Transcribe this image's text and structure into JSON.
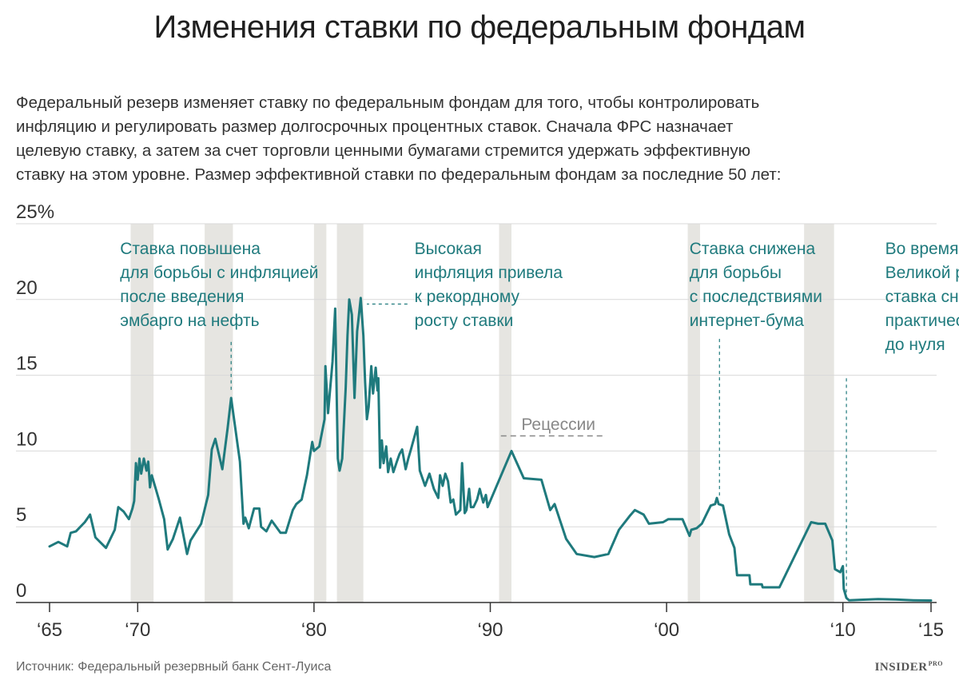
{
  "title": "Изменения ставки по федеральным фондам",
  "subtitle_lines": [
    "Федеральный резерв изменяет ставку по федеральным фондам для того, чтобы контролировать",
    "инфляцию и регулировать размер долгосрочных процентных ставок. Сначала ФРС назначает",
    "целевую ставку, а затем за счет торговли ценными бумагами стремится удержать эффективную",
    "ставку на этом уровне. Размер эффективной ставки по федеральным фондам за последние 50 лет:"
  ],
  "footer": {
    "source": "Источник: Федеральный резервный банк Сент-Луиса",
    "brand": "INSIDER",
    "brand_suffix": "PRO"
  },
  "colors": {
    "line": "#1f7a7d",
    "annotation": "#1f7a7d",
    "recession": "#e6e5e1",
    "grid": "#d9d9d9",
    "axis": "#333333",
    "legend_text": "#888888"
  },
  "chart_data": {
    "type": "line",
    "title": "",
    "xlabel": "",
    "ylabel": "",
    "xlim": [
      1965,
      2015
    ],
    "ylim": [
      0,
      25
    ],
    "grid": true,
    "yticks": [
      {
        "value": 0,
        "label": "0"
      },
      {
        "value": 5,
        "label": "5"
      },
      {
        "value": 10,
        "label": "10"
      },
      {
        "value": 15,
        "label": "15"
      },
      {
        "value": 20,
        "label": "20"
      },
      {
        "value": 25,
        "label": "25%"
      }
    ],
    "xticks": [
      {
        "value": 1965,
        "label": "‘65"
      },
      {
        "value": 1970,
        "label": "‘70"
      },
      {
        "value": 1980,
        "label": "‘80"
      },
      {
        "value": 1990,
        "label": "‘90"
      },
      {
        "value": 2000,
        "label": "‘00"
      },
      {
        "value": 2010,
        "label": "‘10"
      },
      {
        "value": 2015,
        "label": "‘15"
      }
    ],
    "recessions": [
      [
        1969.6,
        1970.9
      ],
      [
        1973.8,
        1975.4
      ],
      [
        1980.0,
        1980.7
      ],
      [
        1981.3,
        1982.8
      ],
      [
        1990.5,
        1991.2
      ],
      [
        2001.2,
        2001.9
      ],
      [
        2007.8,
        2009.5
      ]
    ],
    "series": [
      {
        "name": "",
        "points": [
          [
            1965.0,
            3.7
          ],
          [
            1965.5,
            4.0
          ],
          [
            1966.0,
            3.7
          ],
          [
            1966.2,
            4.6
          ],
          [
            1966.5,
            4.7
          ],
          [
            1967.0,
            5.3
          ],
          [
            1967.3,
            5.8
          ],
          [
            1967.6,
            4.3
          ],
          [
            1968.2,
            3.6
          ],
          [
            1968.7,
            4.8
          ],
          [
            1968.9,
            6.3
          ],
          [
            1969.2,
            6.0
          ],
          [
            1969.5,
            5.5
          ],
          [
            1969.7,
            6.2
          ],
          [
            1969.8,
            6.7
          ],
          [
            1969.9,
            9.2
          ],
          [
            1970.0,
            8.1
          ],
          [
            1970.1,
            9.5
          ],
          [
            1970.2,
            8.5
          ],
          [
            1970.35,
            9.5
          ],
          [
            1970.5,
            8.7
          ],
          [
            1970.6,
            9.3
          ],
          [
            1970.7,
            7.6
          ],
          [
            1970.8,
            8.4
          ],
          [
            1971.2,
            6.8
          ],
          [
            1971.5,
            5.5
          ],
          [
            1971.7,
            3.5
          ],
          [
            1972.0,
            4.2
          ],
          [
            1972.4,
            5.6
          ],
          [
            1972.8,
            3.2
          ],
          [
            1973.0,
            4.1
          ],
          [
            1973.6,
            5.2
          ],
          [
            1974.0,
            7.1
          ],
          [
            1974.2,
            10.1
          ],
          [
            1974.4,
            10.8
          ],
          [
            1974.8,
            8.8
          ],
          [
            1975.1,
            11.5
          ],
          [
            1975.3,
            13.5
          ],
          [
            1975.8,
            9.3
          ],
          [
            1976.0,
            5.2
          ],
          [
            1976.1,
            5.6
          ],
          [
            1976.3,
            4.9
          ],
          [
            1976.6,
            6.2
          ],
          [
            1976.9,
            6.2
          ],
          [
            1977.0,
            5.0
          ],
          [
            1977.3,
            4.7
          ],
          [
            1977.6,
            5.4
          ],
          [
            1978.1,
            4.6
          ],
          [
            1978.4,
            4.6
          ],
          [
            1978.8,
            6.1
          ],
          [
            1979.0,
            6.5
          ],
          [
            1979.3,
            6.8
          ],
          [
            1979.6,
            8.4
          ],
          [
            1979.9,
            10.6
          ],
          [
            1980.0,
            10.0
          ],
          [
            1980.3,
            10.3
          ],
          [
            1980.6,
            12.1
          ],
          [
            1980.65,
            15.6
          ],
          [
            1980.8,
            12.5
          ],
          [
            1981.05,
            15.9
          ],
          [
            1981.2,
            19.4
          ],
          [
            1981.35,
            9.5
          ],
          [
            1981.45,
            8.7
          ],
          [
            1981.6,
            9.5
          ],
          [
            1981.8,
            14.2
          ],
          [
            1981.9,
            17.6
          ],
          [
            1982.0,
            20.0
          ],
          [
            1982.15,
            19.0
          ],
          [
            1982.3,
            13.5
          ],
          [
            1982.45,
            17.9
          ],
          [
            1982.55,
            19.0
          ],
          [
            1982.65,
            20.1
          ],
          [
            1982.8,
            17.6
          ],
          [
            1982.9,
            14.5
          ],
          [
            1983.0,
            12.1
          ],
          [
            1983.1,
            12.9
          ],
          [
            1983.25,
            15.6
          ],
          [
            1983.35,
            13.8
          ],
          [
            1983.5,
            15.5
          ],
          [
            1983.6,
            14.0
          ],
          [
            1983.65,
            14.8
          ],
          [
            1983.75,
            8.9
          ],
          [
            1983.85,
            10.7
          ],
          [
            1983.95,
            9.2
          ],
          [
            1984.1,
            10.3
          ],
          [
            1984.2,
            8.6
          ],
          [
            1984.35,
            9.5
          ],
          [
            1984.5,
            8.6
          ],
          [
            1984.7,
            9.3
          ],
          [
            1984.85,
            9.8
          ],
          [
            1985.0,
            10.1
          ],
          [
            1985.2,
            8.8
          ],
          [
            1985.35,
            9.5
          ],
          [
            1985.5,
            10.1
          ],
          [
            1985.85,
            11.6
          ],
          [
            1986.0,
            8.7
          ],
          [
            1986.3,
            7.7
          ],
          [
            1986.55,
            8.5
          ],
          [
            1986.8,
            7.5
          ],
          [
            1987.05,
            6.9
          ],
          [
            1987.15,
            8.4
          ],
          [
            1987.3,
            7.7
          ],
          [
            1987.45,
            8.5
          ],
          [
            1987.6,
            8.0
          ],
          [
            1987.75,
            6.6
          ],
          [
            1987.9,
            6.8
          ],
          [
            1988.05,
            5.8
          ],
          [
            1988.3,
            6.1
          ],
          [
            1988.4,
            9.2
          ],
          [
            1988.55,
            5.9
          ],
          [
            1988.65,
            6.1
          ],
          [
            1988.8,
            7.5
          ],
          [
            1988.9,
            6.3
          ],
          [
            1989.05,
            6.3
          ],
          [
            1989.25,
            6.8
          ],
          [
            1989.4,
            7.5
          ],
          [
            1989.6,
            6.6
          ],
          [
            1989.75,
            7.1
          ],
          [
            1989.85,
            6.3
          ],
          [
            1991.2,
            10.0
          ],
          [
            1991.9,
            8.2
          ],
          [
            1992.9,
            8.1
          ],
          [
            1993.4,
            6.1
          ],
          [
            1993.65,
            6.5
          ],
          [
            1994.3,
            4.2
          ],
          [
            1994.9,
            3.2
          ],
          [
            1995.9,
            3.0
          ],
          [
            1996.7,
            3.2
          ],
          [
            1997.3,
            4.8
          ],
          [
            1997.9,
            5.7
          ],
          [
            1998.2,
            6.1
          ],
          [
            1998.7,
            5.8
          ],
          [
            1999.0,
            5.2
          ],
          [
            1999.8,
            5.3
          ],
          [
            2000.1,
            5.5
          ],
          [
            2000.45,
            5.5
          ],
          [
            2000.9,
            5.5
          ],
          [
            2001.3,
            4.4
          ],
          [
            2001.4,
            4.8
          ],
          [
            2001.7,
            4.9
          ],
          [
            2002.0,
            5.2
          ],
          [
            2002.5,
            6.4
          ],
          [
            2002.75,
            6.5
          ],
          [
            2002.85,
            6.9
          ],
          [
            2002.95,
            6.5
          ],
          [
            2003.2,
            6.4
          ],
          [
            2003.55,
            4.5
          ],
          [
            2003.85,
            3.6
          ],
          [
            2004.0,
            1.8
          ],
          [
            2004.7,
            1.8
          ],
          [
            2004.75,
            1.2
          ],
          [
            2005.4,
            1.2
          ],
          [
            2005.45,
            1.0
          ],
          [
            2006.4,
            1.0
          ],
          [
            2008.2,
            5.3
          ],
          [
            2008.6,
            5.2
          ],
          [
            2009.0,
            5.2
          ],
          [
            2009.4,
            4.1
          ],
          [
            2009.55,
            2.2
          ],
          [
            2009.85,
            2.0
          ],
          [
            2010.0,
            2.4
          ],
          [
            2010.05,
            0.9
          ],
          [
            2010.2,
            0.3
          ],
          [
            2010.35,
            0.15
          ],
          [
            2011.0,
            0.18
          ],
          [
            2012.0,
            0.22
          ],
          [
            2013.0,
            0.2
          ],
          [
            2014.0,
            0.15
          ],
          [
            2015.0,
            0.13
          ]
        ]
      }
    ],
    "annotations": [
      {
        "lines": [
          "Ставка повышена",
          "для борьбы с инфляцией",
          "после введения",
          "эмбарго на нефть"
        ],
        "x": 1969.0,
        "y": 23.0,
        "anchor": "start",
        "leader": [
          [
            1975.3,
            17.2
          ],
          [
            1975.3,
            13.9
          ]
        ]
      },
      {
        "lines": [
          "Высокая",
          "инфляция привела",
          "к рекордному",
          "росту ставки"
        ],
        "x": 1985.7,
        "y": 23.0,
        "anchor": "start",
        "leader": [
          [
            1985.3,
            19.7
          ],
          [
            1983.0,
            19.7
          ]
        ]
      },
      {
        "lines": [
          "Ставка снижена",
          "для борьбы",
          "с последствиями",
          "интернет-бума"
        ],
        "x": 2001.3,
        "y": 23.0,
        "anchor": "start",
        "leader": [
          [
            2003.0,
            17.4
          ],
          [
            2003.0,
            7.0
          ]
        ]
      },
      {
        "lines": [
          "Во время",
          "Великой рецессии",
          "ставка снизилась",
          "практически",
          "до нуля"
        ],
        "x": 2012.4,
        "y": 23.0,
        "anchor": "start",
        "leader": [
          [
            2010.2,
            14.8
          ],
          [
            2010.2,
            0.4
          ]
        ]
      }
    ],
    "legend": {
      "label": "Рецессии",
      "x": 1990.6,
      "y": 11.4,
      "line": [
        [
          1990.6,
          11.0
        ],
        [
          1996.4,
          11.0
        ]
      ]
    }
  }
}
